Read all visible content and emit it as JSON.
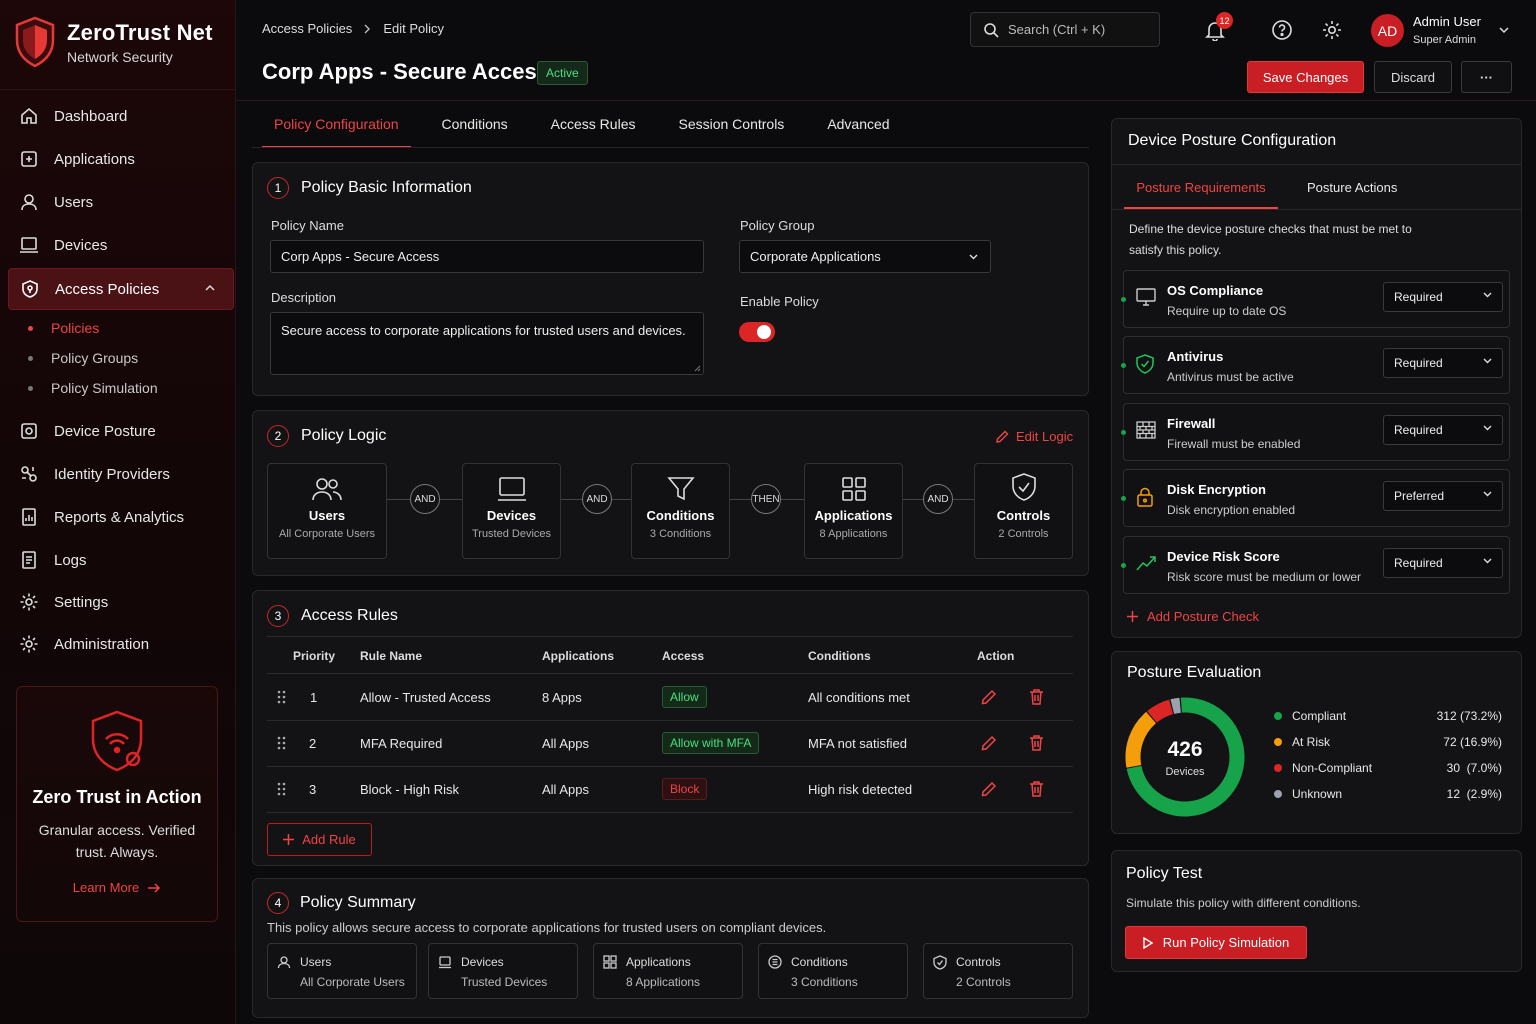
{
  "brand": {
    "name": "ZeroTrust Net",
    "sub": "Network Security"
  },
  "nav": {
    "items": [
      {
        "label": "Dashboard",
        "icon": "home-icon"
      },
      {
        "label": "Applications",
        "icon": "applications-icon"
      },
      {
        "label": "Users",
        "icon": "user-icon"
      },
      {
        "label": "Devices",
        "icon": "laptop-icon"
      },
      {
        "label": "Access Policies",
        "icon": "shield-icon"
      },
      {
        "label": "Device Posture",
        "icon": "device-posture-icon"
      },
      {
        "label": "Identity Providers",
        "icon": "identity-icon"
      },
      {
        "label": "Reports & Analytics",
        "icon": "report-icon"
      },
      {
        "label": "Logs",
        "icon": "logs-icon"
      },
      {
        "label": "Settings",
        "icon": "gear-icon"
      },
      {
        "label": "Administration",
        "icon": "admin-gear-icon"
      }
    ],
    "sub": [
      "Policies",
      "Policy Groups",
      "Policy Simulation"
    ]
  },
  "promo": {
    "title": "Zero Trust in Action",
    "text1": "Granular access. Verified",
    "text2": "trust. Always.",
    "link": "Learn More"
  },
  "header": {
    "breadcrumb": [
      "Access Policies",
      "Edit Policy"
    ],
    "title": "Corp Apps - Secure Access",
    "status": "Active",
    "search_placeholder": "Search (Ctrl + K)",
    "notifications": "12",
    "user_initials": "AD",
    "user_name": "Admin User",
    "user_role": "Super Admin",
    "save": "Save Changes",
    "discard": "Discard",
    "more": "···"
  },
  "tabs": [
    "Policy Configuration",
    "Conditions",
    "Access Rules",
    "Session Controls",
    "Advanced"
  ],
  "basic": {
    "num": "1",
    "title": "Policy Basic Information",
    "name_label": "Policy Name",
    "name_value": "Corp Apps - Secure Access",
    "group_label": "Policy Group",
    "group_value": "Corporate Applications",
    "desc_label": "Description",
    "desc_value": "Secure access to corporate applications for trusted users and devices.",
    "enable_label": "Enable Policy"
  },
  "logic": {
    "num": "2",
    "title": "Policy Logic",
    "edit": "Edit Logic",
    "nodes": [
      {
        "title": "Users",
        "sub": "All Corporate Users"
      },
      {
        "title": "Devices",
        "sub": "Trusted Devices"
      },
      {
        "title": "Conditions",
        "sub": "3 Conditions"
      },
      {
        "title": "Applications",
        "sub": "8 Applications"
      },
      {
        "title": "Controls",
        "sub": "2 Controls"
      }
    ],
    "connectors": [
      "AND",
      "AND",
      "THEN",
      "AND"
    ]
  },
  "rules": {
    "num": "3",
    "title": "Access Rules",
    "headers": [
      "Priority",
      "Rule Name",
      "Applications",
      "Access",
      "Conditions",
      "Action"
    ],
    "rows": [
      {
        "priority": "1",
        "name": "Allow - Trusted Access",
        "apps": "8 Apps",
        "access": "Allow",
        "cond": "All conditions met"
      },
      {
        "priority": "2",
        "name": "MFA Required",
        "apps": "All Apps",
        "access": "Allow with MFA",
        "cond": "MFA not satisfied"
      },
      {
        "priority": "3",
        "name": "Block - High Risk",
        "apps": "All Apps",
        "access": "Block",
        "cond": "High risk detected"
      }
    ],
    "add": "Add Rule"
  },
  "summary": {
    "num": "4",
    "title": "Policy Summary",
    "text": "This policy allows secure access to corporate applications for trusted users on compliant devices.",
    "items": [
      {
        "title": "Users",
        "sub": "All Corporate Users"
      },
      {
        "title": "Devices",
        "sub": "Trusted Devices"
      },
      {
        "title": "Applications",
        "sub": "8 Applications"
      },
      {
        "title": "Conditions",
        "sub": "3 Conditions"
      },
      {
        "title": "Controls",
        "sub": "2 Controls"
      }
    ]
  },
  "posture": {
    "title": "Device Posture Configuration",
    "tabs": [
      "Posture Requirements",
      "Posture Actions"
    ],
    "desc1": "Define the device posture checks that must be met to",
    "desc2": "satisfy this policy.",
    "checks": [
      {
        "title": "OS Compliance",
        "sub": "Require up to date OS",
        "value": "Required"
      },
      {
        "title": "Antivirus",
        "sub": "Antivirus must be active",
        "value": "Required"
      },
      {
        "title": "Firewall",
        "sub": "Firewall must be enabled",
        "value": "Required"
      },
      {
        "title": "Disk Encryption",
        "sub": "Disk encryption enabled",
        "value": "Preferred"
      },
      {
        "title": "Device Risk Score",
        "sub": "Risk score must be medium or lower",
        "value": "Required"
      }
    ],
    "add": "Add Posture Check"
  },
  "evaluation": {
    "title": "Posture Evaluation",
    "total": "426",
    "total_label": "Devices",
    "legend": [
      {
        "label": "Compliant",
        "value": "312 (73.2%)",
        "color": "#16a34a"
      },
      {
        "label": "At Risk",
        "value": "72 (16.9%)",
        "color": "#f59e0b"
      },
      {
        "label": "Non-Compliant",
        "value": "30  (7.0%)",
        "color": "#dc2626"
      },
      {
        "label": "Unknown",
        "value": "12  (2.9%)",
        "color": "#9ca3af"
      }
    ]
  },
  "chart_data": {
    "type": "pie",
    "categories": [
      "Compliant",
      "At Risk",
      "Non-Compliant",
      "Unknown"
    ],
    "values": [
      312,
      72,
      30,
      12
    ]
  },
  "test": {
    "title": "Policy Test",
    "desc": "Simulate this policy with different conditions.",
    "button": "Run Policy Simulation"
  }
}
